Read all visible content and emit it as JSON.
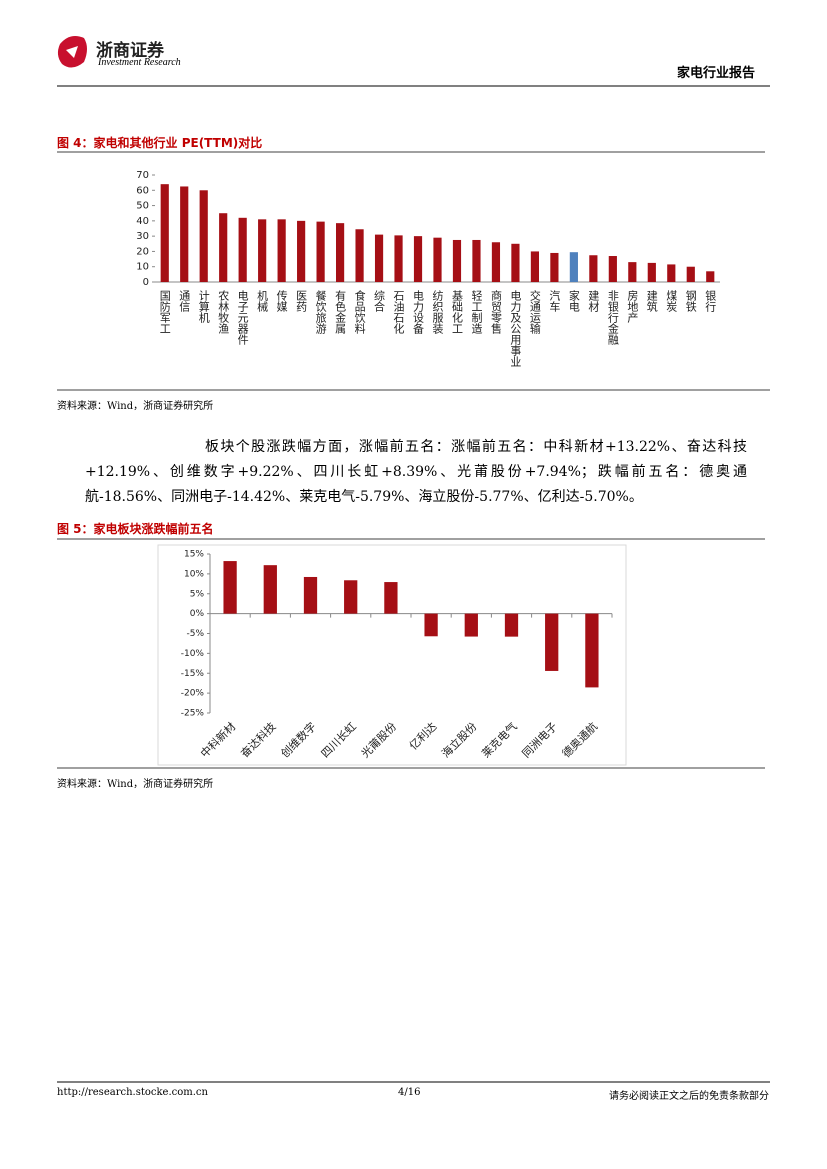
{
  "header": {
    "logo_name": "浙商证券",
    "logo_en": "Investment Research",
    "report": "家电行业报告"
  },
  "chart_data": [
    {
      "type": "bar",
      "title": "图 4：家电和其他行业 PE(TTM)对比",
      "categories": [
        "国防军工",
        "通信",
        "计算机",
        "农林牧渔",
        "电子元器件",
        "机械",
        "传媒",
        "医药",
        "餐饮旅游",
        "有色金属",
        "食品饮料",
        "综合",
        "石油石化",
        "电力设备",
        "纺织服装",
        "基础化工",
        "轻工制造",
        "商贸零售",
        "电力及公用事业",
        "交通运输",
        "汽车",
        "家电",
        "建材",
        "非银行金融",
        "房地产",
        "建筑",
        "煤炭",
        "钢铁",
        "银行"
      ],
      "values": [
        64,
        62.5,
        60,
        45,
        42,
        41,
        41,
        40,
        39.5,
        38.5,
        34.5,
        31,
        30.5,
        30,
        29,
        27.5,
        27.5,
        26,
        25,
        20,
        19,
        19.5,
        17.5,
        17,
        13,
        12.5,
        11.5,
        10,
        7
      ],
      "colors": [
        "#a50f15",
        "#a50f15",
        "#a50f15",
        "#a50f15",
        "#a50f15",
        "#a50f15",
        "#a50f15",
        "#a50f15",
        "#a50f15",
        "#a50f15",
        "#a50f15",
        "#a50f15",
        "#a50f15",
        "#a50f15",
        "#a50f15",
        "#a50f15",
        "#a50f15",
        "#a50f15",
        "#a50f15",
        "#a50f15",
        "#a50f15",
        "#4f81bd",
        "#a50f15",
        "#a50f15",
        "#a50f15",
        "#a50f15",
        "#a50f15",
        "#a50f15",
        "#a50f15"
      ],
      "ylim": [
        0,
        70
      ],
      "yticks": [
        0,
        10,
        20,
        30,
        40,
        50,
        60,
        70
      ],
      "grid": false,
      "source": "资料来源：Wind，浙商证券研究所"
    },
    {
      "type": "bar",
      "title": "图 5：家电板块涨跌幅前五名",
      "categories": [
        "中科新材",
        "奋达科技",
        "创维数字",
        "四川长虹",
        "光莆股份",
        "亿利达",
        "海立股份",
        "莱克电气",
        "同洲电子",
        "德奥通航"
      ],
      "values": [
        13.22,
        12.19,
        9.22,
        8.39,
        7.94,
        -5.7,
        -5.77,
        -5.79,
        -14.42,
        -18.56
      ],
      "color": "#a50f15",
      "ylim": [
        -25,
        15
      ],
      "yticks": [
        {
          "value": 15,
          "label": "15%"
        },
        {
          "value": 10,
          "label": "10%"
        },
        {
          "value": 5,
          "label": "5%"
        },
        {
          "value": 0,
          "label": "0%"
        },
        {
          "value": -5,
          "label": "-5%"
        },
        {
          "value": -10,
          "label": "-10%"
        },
        {
          "value": -15,
          "label": "-15%"
        },
        {
          "value": -20,
          "label": "-20%"
        },
        {
          "value": -25,
          "label": "-25%"
        }
      ],
      "grid": false,
      "source": "资料来源：Wind，浙商证券研究所"
    }
  ],
  "paragraph": "板块个股涨跌幅方面，涨幅前五名：涨幅前五名：中科新材+13.22%、奋达科技+12.19%、创维数字+9.22%、四川长虹+8.39%、光莆股份+7.94%；跌幅前五名：德奥通航-18.56%、同洲电子-14.42%、莱克电气-5.79%、海立股份-5.77%、亿利达-5.70%。",
  "footer": {
    "url": "http://research.stocke.com.cn",
    "page": "4/16",
    "disclaimer": "请务必阅读正文之后的免责条款部分"
  }
}
